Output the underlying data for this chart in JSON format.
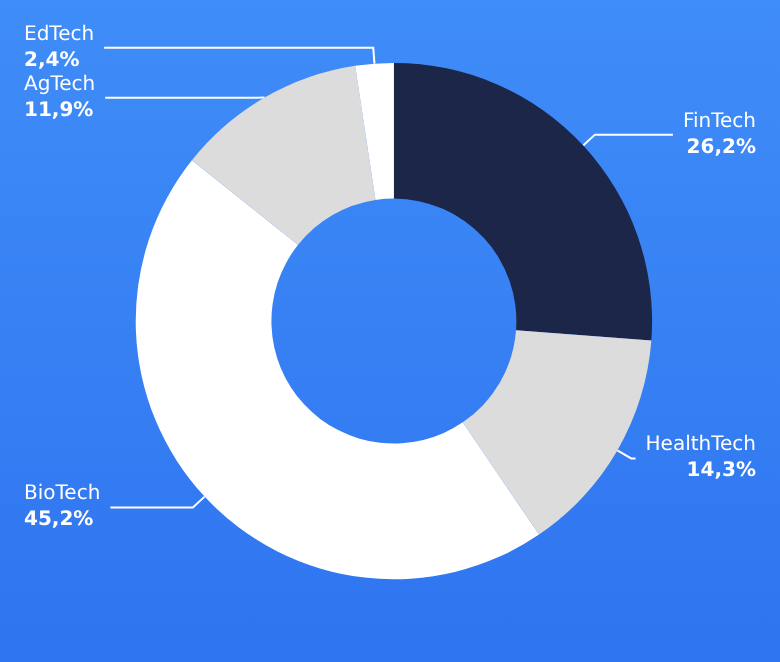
{
  "chart_data": {
    "type": "donut",
    "categories": [
      "FinTech",
      "HealthTech",
      "BioTech",
      "AgTech",
      "EdTech"
    ],
    "values": [
      26.2,
      14.3,
      45.2,
      11.9,
      2.4
    ],
    "value_labels": [
      "26,2%",
      "14,3%",
      "45,2%",
      "11,9%",
      "2,4%"
    ],
    "colors": [
      "#1c2648",
      "#dcdcdc",
      "#ffffff",
      "#dcdcdc",
      "#ffffff"
    ]
  }
}
